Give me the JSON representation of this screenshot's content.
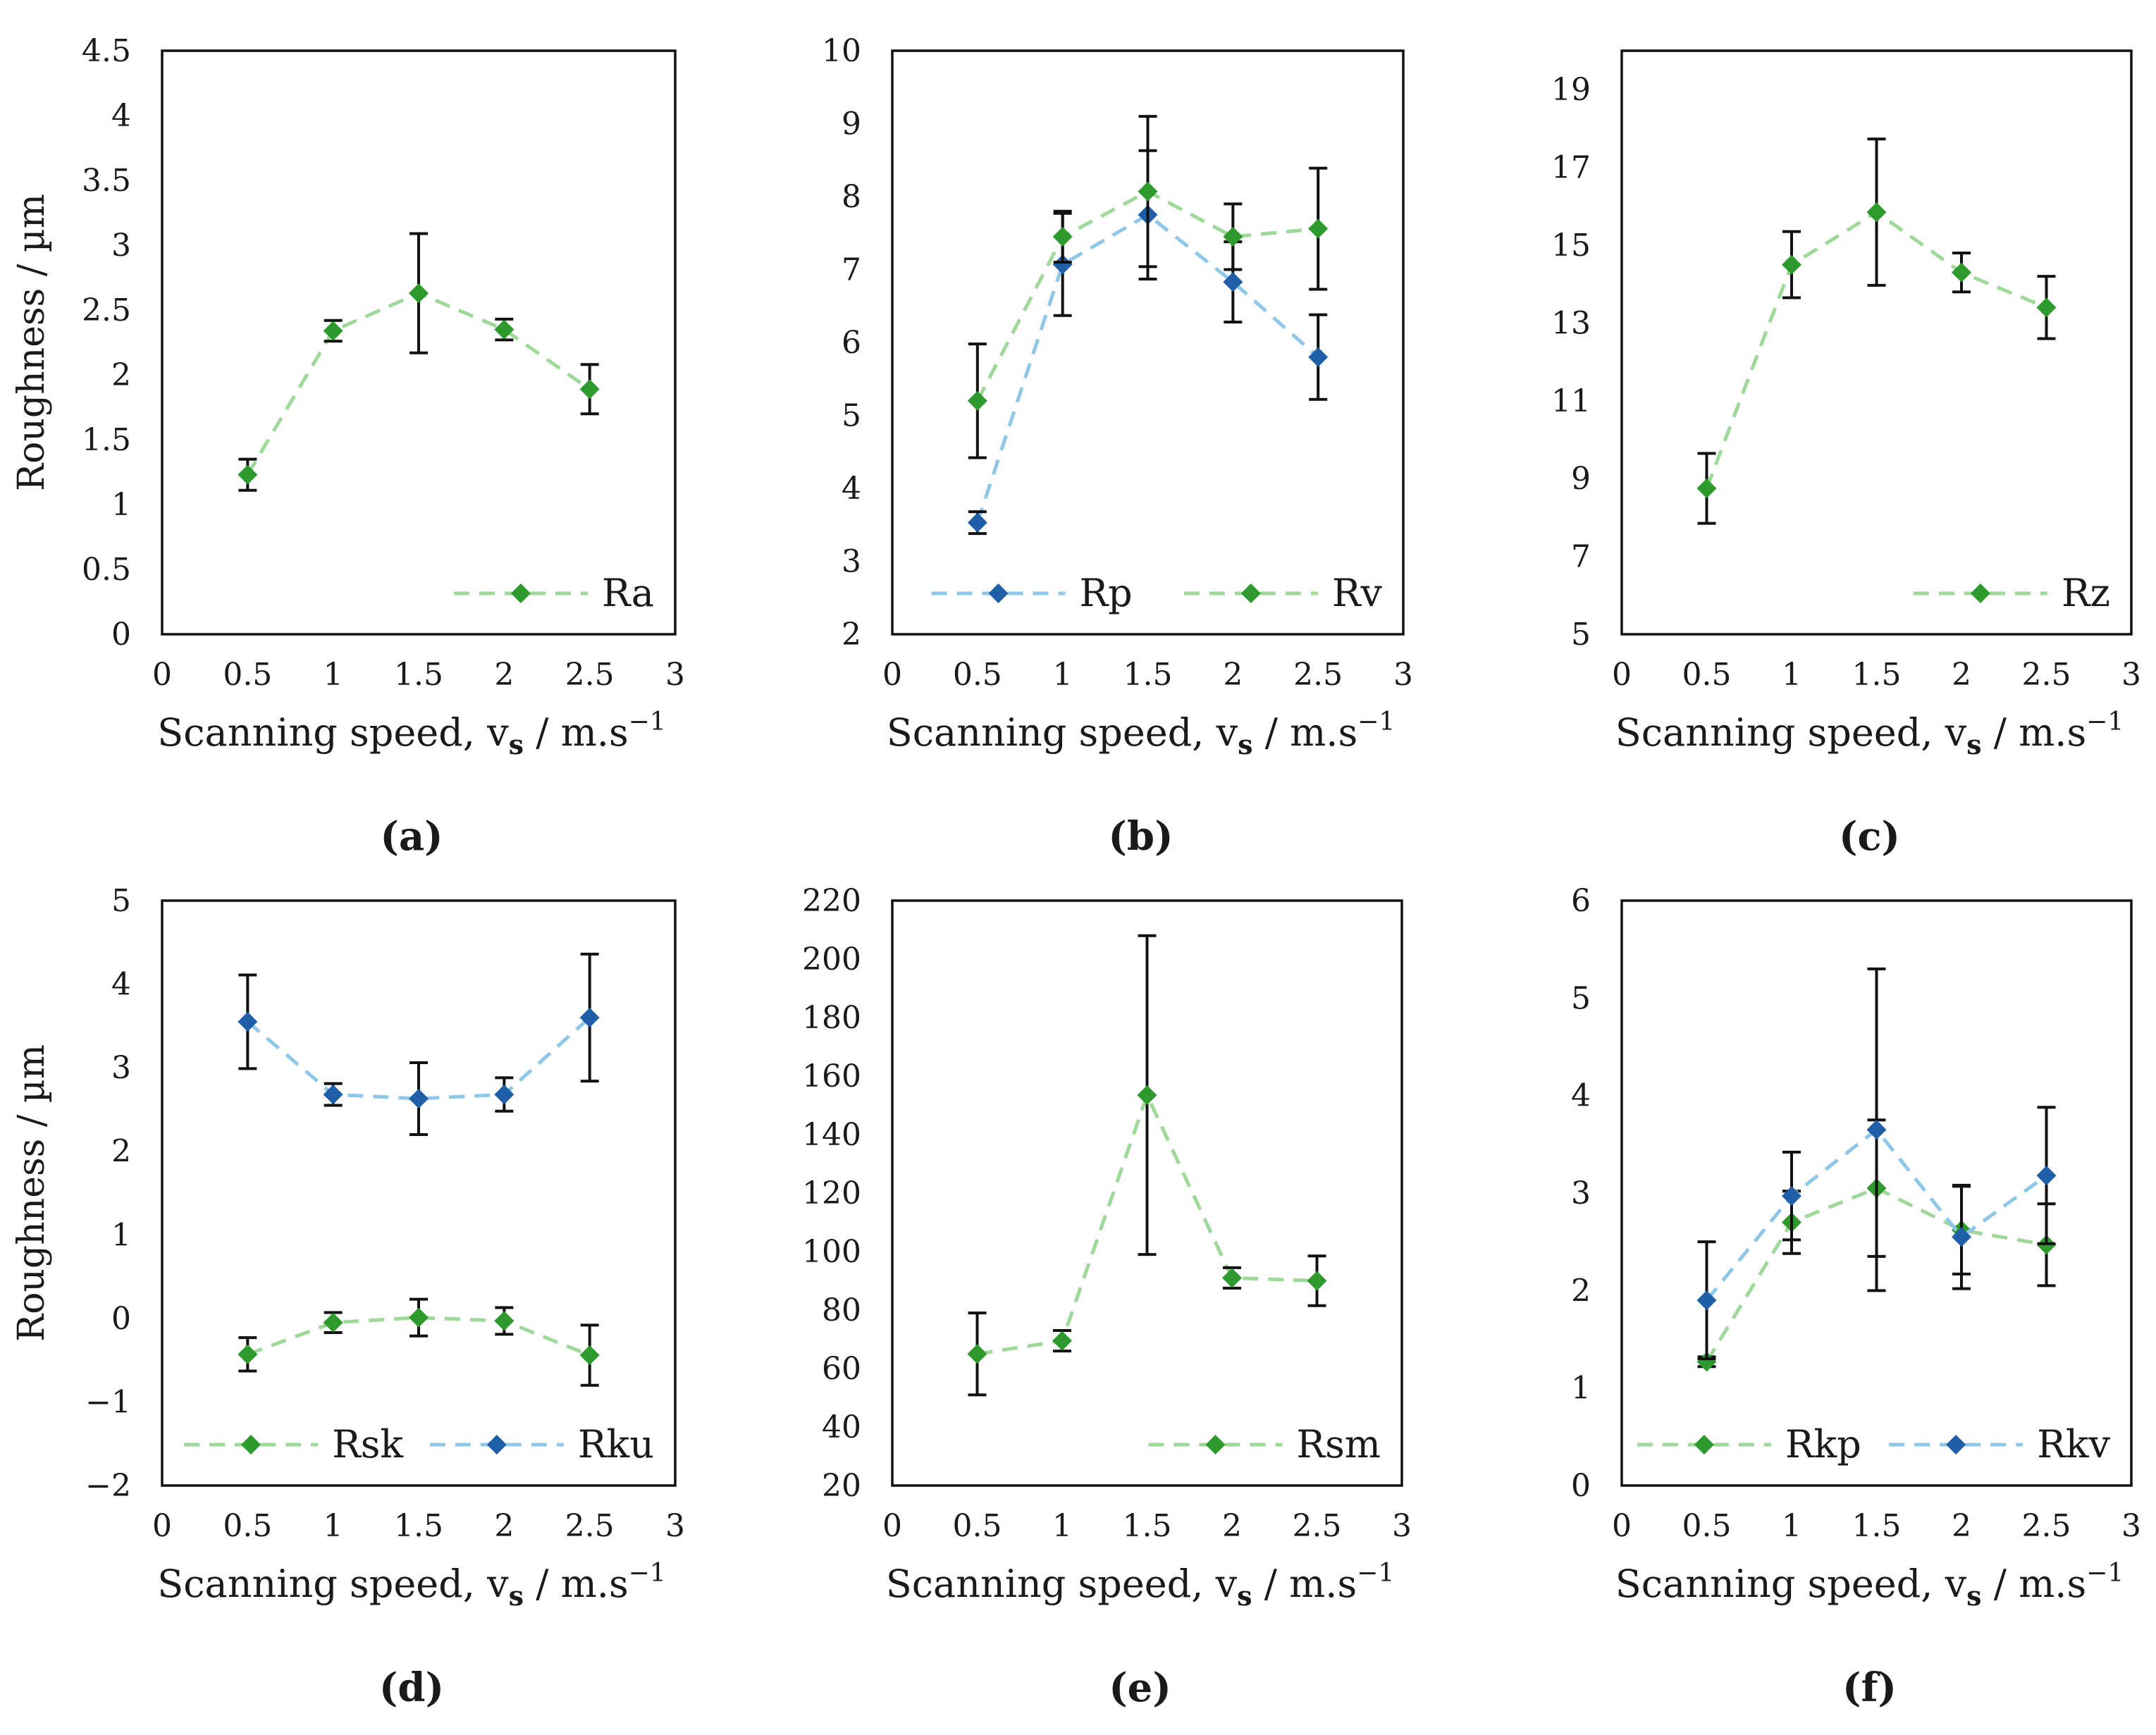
{
  "colors": {
    "green_marker": "#2e9a2e",
    "green_line": "#9ed99a",
    "blue_marker": "#1f5fa8",
    "blue_line": "#8fc7e8",
    "error_bar": "#111111",
    "axis": "#111111"
  },
  "chart_data": [
    {
      "type": "line",
      "panel_label": "(a)",
      "ylabel": "Roughness / µm",
      "xlabel": "Scanning speed, vs / m.s⁻¹",
      "xlabel_parts": {
        "main": "Scanning speed, v",
        "sub": "s",
        "unit": " / m.s",
        "sup": "−1"
      },
      "xlim": [
        0,
        3
      ],
      "xticks": [
        0,
        0.5,
        1,
        1.5,
        2,
        2.5,
        3
      ],
      "xtick_labels": [
        "0",
        "0.5",
        "1",
        "1.5",
        "2",
        "2.5",
        "3"
      ],
      "ylim": [
        0,
        4.5
      ],
      "yticks": [
        0,
        0.5,
        1,
        1.5,
        2,
        2.5,
        3,
        3.5,
        4,
        4.5
      ],
      "ytick_labels": [
        "0",
        "0.5",
        "1",
        "1.5",
        "2",
        "2.5",
        "3",
        "3.5",
        "4",
        "4.5"
      ],
      "legend_position": "bottom-right",
      "series": [
        {
          "name": "Ra",
          "color": "green",
          "x": [
            0.5,
            1,
            1.5,
            2,
            2.5
          ],
          "y": [
            1.23,
            2.34,
            2.63,
            2.35,
            1.89
          ],
          "err": [
            0.12,
            0.08,
            0.46,
            0.08,
            0.19
          ]
        }
      ]
    },
    {
      "type": "line",
      "panel_label": "(b)",
      "ylabel": "",
      "xlabel": "Scanning speed, vs / m.s⁻¹",
      "xlabel_parts": {
        "main": "Scanning speed, v",
        "sub": "s",
        "unit": " / m.s",
        "sup": "−1"
      },
      "xlim": [
        0,
        3
      ],
      "xticks": [
        0,
        0.5,
        1,
        1.5,
        2,
        2.5,
        3
      ],
      "xtick_labels": [
        "0",
        "0.5",
        "1",
        "1.5",
        "2",
        "2.5",
        "3"
      ],
      "ylim": [
        2,
        10
      ],
      "yticks": [
        2,
        3,
        4,
        5,
        6,
        7,
        8,
        9,
        10
      ],
      "ytick_labels": [
        "2",
        "3",
        "4",
        "5",
        "6",
        "7",
        "8",
        "9",
        "10"
      ],
      "legend_position": "bottom",
      "series": [
        {
          "name": "Rp",
          "color": "blue",
          "x": [
            0.5,
            1,
            1.5,
            2,
            2.5
          ],
          "y": [
            3.53,
            7.07,
            7.75,
            6.83,
            5.8
          ],
          "err": [
            0.15,
            0.7,
            0.88,
            0.55,
            0.58
          ]
        },
        {
          "name": "Rv",
          "color": "green",
          "x": [
            0.5,
            1,
            1.5,
            2,
            2.5
          ],
          "y": [
            5.2,
            7.45,
            8.07,
            7.45,
            7.56
          ],
          "err": [
            0.78,
            0.35,
            1.03,
            0.45,
            0.83
          ]
        }
      ]
    },
    {
      "type": "line",
      "panel_label": "(c)",
      "ylabel": "",
      "xlabel": "Scanning speed, vs / m.s⁻¹",
      "xlabel_parts": {
        "main": "Scanning speed, v",
        "sub": "s",
        "unit": " / m.s",
        "sup": "−1"
      },
      "xlim": [
        0,
        3
      ],
      "xticks": [
        0,
        0.5,
        1,
        1.5,
        2,
        2.5,
        3
      ],
      "xtick_labels": [
        "0",
        "0.5",
        "1",
        "1.5",
        "2",
        "2.5",
        "3"
      ],
      "ylim": [
        5,
        20
      ],
      "yticks": [
        5,
        7,
        9,
        11,
        13,
        15,
        17,
        19
      ],
      "ytick_labels": [
        "5",
        "7",
        "9",
        "11",
        "13",
        "15",
        "17",
        "19"
      ],
      "legend_position": "bottom-right",
      "series": [
        {
          "name": "Rz",
          "color": "green",
          "x": [
            0.5,
            1,
            1.5,
            2,
            2.5
          ],
          "y": [
            8.75,
            14.5,
            15.85,
            14.3,
            13.4
          ],
          "err": [
            0.9,
            0.85,
            1.88,
            0.5,
            0.8
          ]
        }
      ]
    },
    {
      "type": "line",
      "panel_label": "(d)",
      "ylabel": "Roughness / µm",
      "xlabel": "Scanning speed, vs / m.s⁻¹",
      "xlabel_parts": {
        "main": "Scanning speed, v",
        "sub": "s",
        "unit": " / m.s",
        "sup": "−1"
      },
      "xlim": [
        0,
        3
      ],
      "xticks": [
        0,
        0.5,
        1,
        1.5,
        2,
        2.5,
        3
      ],
      "xtick_labels": [
        "0",
        "0.5",
        "1",
        "1.5",
        "2",
        "2.5",
        "3"
      ],
      "ylim": [
        -2,
        5
      ],
      "yticks": [
        -2,
        -1,
        0,
        1,
        2,
        3,
        4,
        5
      ],
      "ytick_labels": [
        "−2",
        "−1",
        "0",
        "1",
        "2",
        "3",
        "4",
        "5"
      ],
      "legend_position": "bottom",
      "series": [
        {
          "name": "Rsk",
          "color": "green",
          "x": [
            0.5,
            1,
            1.5,
            2,
            2.5
          ],
          "y": [
            -0.43,
            -0.05,
            0.01,
            -0.03,
            -0.44
          ],
          "err": [
            0.2,
            0.12,
            0.22,
            0.16,
            0.36
          ]
        },
        {
          "name": "Rku",
          "color": "blue",
          "x": [
            0.5,
            1,
            1.5,
            2,
            2.5
          ],
          "y": [
            3.55,
            2.68,
            2.63,
            2.68,
            3.6
          ],
          "err": [
            0.56,
            0.13,
            0.43,
            0.2,
            0.76
          ]
        }
      ]
    },
    {
      "type": "line",
      "panel_label": "(e)",
      "ylabel": "",
      "xlabel": "Scanning speed, vs / m.s⁻¹",
      "xlabel_parts": {
        "main": "Scanning speed, v",
        "sub": "s",
        "unit": " / m.s",
        "sup": "−1"
      },
      "xlim": [
        0,
        3
      ],
      "xticks": [
        0,
        0.5,
        1,
        1.5,
        2,
        2.5,
        3
      ],
      "xtick_labels": [
        "0",
        "0.5",
        "1",
        "1.5",
        "2",
        "2.5",
        "3"
      ],
      "ylim": [
        20,
        220
      ],
      "yticks": [
        20,
        40,
        60,
        80,
        100,
        120,
        140,
        160,
        180,
        200,
        220
      ],
      "ytick_labels": [
        "20",
        "40",
        "60",
        "80",
        "100",
        "120",
        "140",
        "160",
        "180",
        "200",
        "220"
      ],
      "legend_position": "bottom-right",
      "series": [
        {
          "name": "Rsm",
          "color": "green",
          "x": [
            0.5,
            1,
            1.5,
            2,
            2.5
          ],
          "y": [
            65,
            69.5,
            153.5,
            91,
            90
          ],
          "err": [
            14,
            3.5,
            54.5,
            3.5,
            8.5
          ]
        }
      ]
    },
    {
      "type": "line",
      "panel_label": "(f)",
      "ylabel": "",
      "xlabel": "Scanning speed, vs / m.s⁻¹",
      "xlabel_parts": {
        "main": "Scanning speed, v",
        "sub": "s",
        "unit": " / m.s",
        "sup": "−1"
      },
      "xlim": [
        0,
        3
      ],
      "xticks": [
        0,
        0.5,
        1,
        1.5,
        2,
        2.5,
        3
      ],
      "xtick_labels": [
        "0",
        "0.5",
        "1",
        "1.5",
        "2",
        "2.5",
        "3"
      ],
      "ylim": [
        0,
        6
      ],
      "yticks": [
        0,
        1,
        2,
        3,
        4,
        5,
        6
      ],
      "ytick_labels": [
        "0",
        "1",
        "2",
        "3",
        "4",
        "5",
        "6"
      ],
      "legend_position": "bottom",
      "series": [
        {
          "name": "Rkp",
          "color": "green",
          "x": [
            0.5,
            1,
            1.5,
            2,
            2.5
          ],
          "y": [
            1.27,
            2.7,
            3.05,
            2.62,
            2.47
          ],
          "err": [
            0.05,
            0.32,
            0.7,
            0.45,
            0.42
          ]
        },
        {
          "name": "Rkv",
          "color": "blue",
          "x": [
            0.5,
            1,
            1.5,
            2,
            2.5
          ],
          "y": [
            1.9,
            2.97,
            3.65,
            2.55,
            3.18
          ],
          "err": [
            0.6,
            0.45,
            1.65,
            0.53,
            0.7
          ]
        }
      ]
    }
  ]
}
